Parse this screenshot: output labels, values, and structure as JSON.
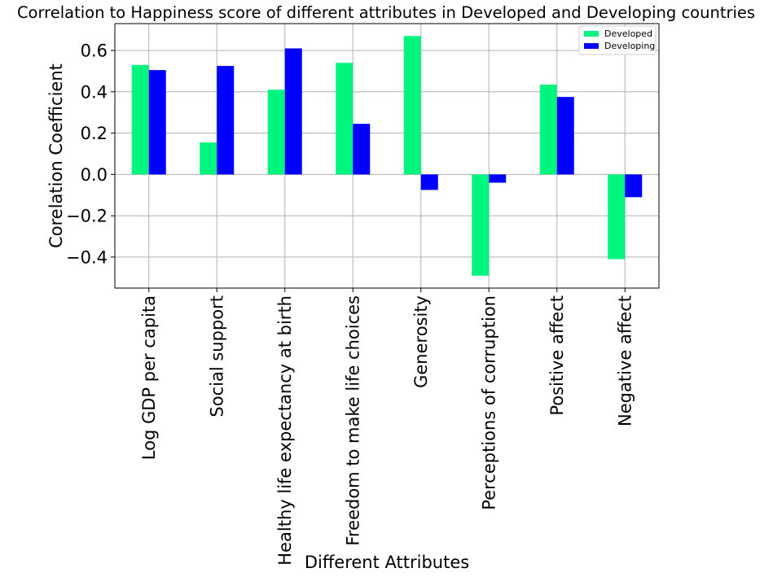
{
  "chart_data": {
    "type": "bar",
    "title": "Correlation to Happiness score of different attributes in Developed and Developing countries",
    "xlabel": "Different Attributes",
    "ylabel": "Corelation Coefficient",
    "categories": [
      "Log GDP per capita",
      "Social support",
      "Healthy life expectancy at birth",
      "Freedom to make life choices",
      "Generosity",
      "Perceptions of corruption",
      "Positive affect",
      "Negative affect"
    ],
    "series": [
      {
        "name": "Developed",
        "color": "#00f57f",
        "values": [
          0.53,
          0.155,
          0.41,
          0.54,
          0.67,
          -0.49,
          0.435,
          -0.41
        ]
      },
      {
        "name": "Developing",
        "color": "#0000ff",
        "values": [
          0.505,
          0.525,
          0.61,
          0.245,
          -0.075,
          -0.04,
          0.375,
          -0.11
        ]
      }
    ],
    "ylim": [
      -0.55,
      0.73
    ],
    "yticks": [
      -0.4,
      -0.2,
      0.0,
      0.2,
      0.4,
      0.6
    ],
    "ytick_labels": [
      "−0.4",
      "−0.2",
      "0.0",
      "0.2",
      "0.4",
      "0.6"
    ],
    "grid": true,
    "legend_position": "top-right"
  }
}
